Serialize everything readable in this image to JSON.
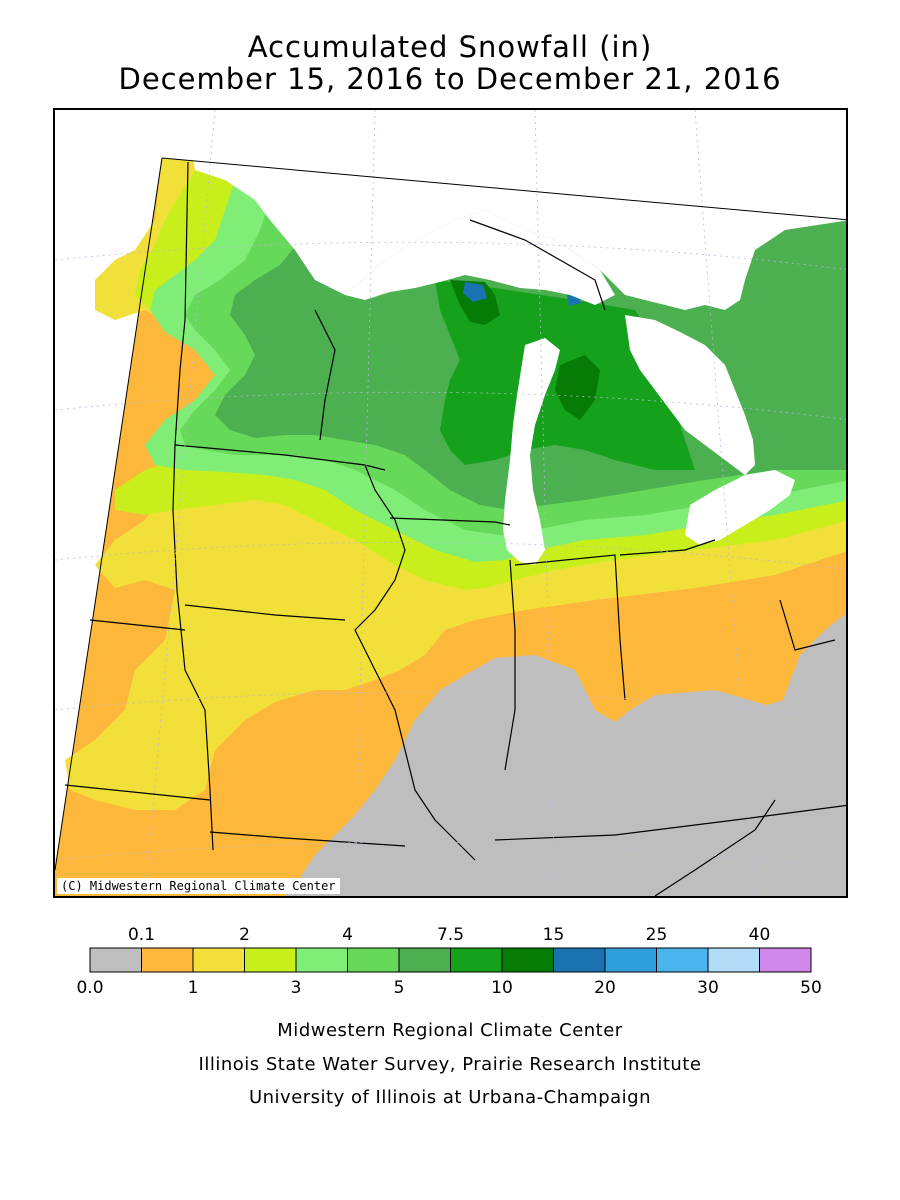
{
  "title": {
    "line1": "Accumulated Snowfall (in)",
    "line2": "December 15, 2016 to December 21, 2016"
  },
  "map": {
    "credit": "(C) Midwestern Regional Climate Center",
    "colors": {
      "none": "#bebebe",
      "c0_1": "#fdb73b",
      "c1_2": "#f2e03a",
      "c2_3": "#c8ef1c",
      "c3_4": "#80ee76",
      "c4_5": "#66d85a",
      "c5_7_5": "#4caf50",
      "c7_5_10": "#16a11d",
      "c10_15": "#067b06",
      "c15_20": "#1a73b0",
      "water": "#ffffff",
      "border": "#000000"
    }
  },
  "legend": {
    "colors": [
      "#bebebe",
      "#fdb73b",
      "#f2e03a",
      "#c8ef1c",
      "#80ee76",
      "#66d85a",
      "#4caf50",
      "#16a11d",
      "#067b06",
      "#1a73b0",
      "#2f9fdc",
      "#4ab4ee",
      "#b2dbf8",
      "#d088ec"
    ],
    "top_labels": [
      "0.1",
      "2",
      "4",
      "7.5",
      "15",
      "25",
      "40"
    ],
    "bottom_labels": [
      "0.0",
      "1",
      "3",
      "5",
      "10",
      "20",
      "30",
      "50"
    ]
  },
  "footer": {
    "line1": "Midwestern Regional Climate Center",
    "line2": "Illinois State Water Survey, Prairie Research Institute",
    "line3": "University of Illinois at Urbana-Champaign"
  }
}
